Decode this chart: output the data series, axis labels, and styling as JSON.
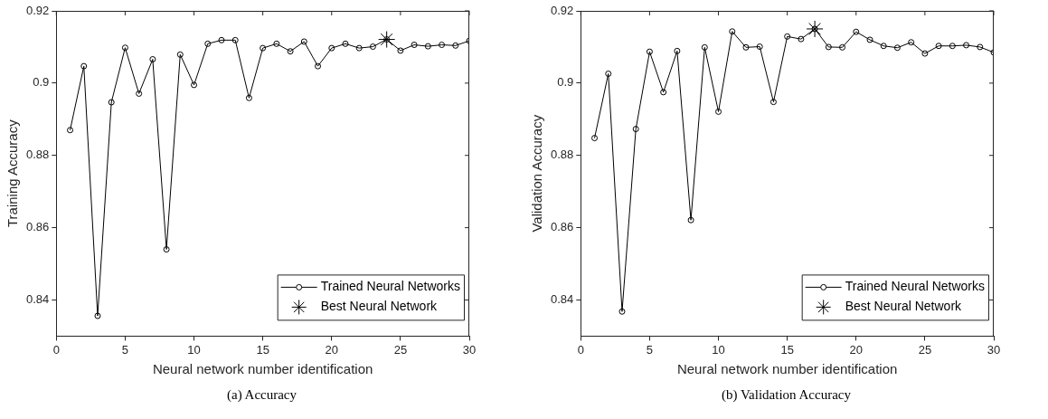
{
  "chart_data": [
    {
      "type": "line",
      "xlabel": "Neural network number identification",
      "ylabel": "Training Accuracy",
      "xlim": [
        0,
        30
      ],
      "xticks": [
        0,
        5,
        10,
        15,
        20,
        25,
        30
      ],
      "ylim": [
        0.83,
        0.92
      ],
      "yticks": [
        0.84,
        0.86,
        0.88,
        0.9,
        0.92
      ],
      "grid": false,
      "legend": "bottom right",
      "annotations": [
        "(a) Accuracy"
      ],
      "series": [
        {
          "name": "Trained Neural Networks",
          "color": "#000000",
          "marker": "circle",
          "x": [
            1,
            2,
            3,
            4,
            5,
            6,
            7,
            8,
            9,
            10,
            11,
            12,
            13,
            14,
            15,
            16,
            17,
            18,
            19,
            20,
            21,
            22,
            23,
            24,
            25,
            26,
            27,
            28,
            29,
            30
          ],
          "values": [
            0.887,
            0.9047,
            0.8356,
            0.8947,
            0.9098,
            0.8971,
            0.9066,
            0.854,
            0.9079,
            0.8995,
            0.9109,
            0.9119,
            0.9119,
            0.8959,
            0.9097,
            0.9109,
            0.9088,
            0.9115,
            0.9047,
            0.9097,
            0.9109,
            0.9097,
            0.9101,
            0.9121,
            0.909,
            0.9106,
            0.9102,
            0.9106,
            0.9104,
            0.9117
          ]
        },
        {
          "name": "Best Neural Network",
          "type": "scatter",
          "color": "#000000",
          "marker": "cross",
          "x": [
            24
          ],
          "values": [
            0.9121
          ]
        }
      ]
    },
    {
      "type": "line",
      "xlabel": "Neural network number identification",
      "ylabel": "Validation Accuracy",
      "xlim": [
        0,
        30
      ],
      "xticks": [
        0,
        5,
        10,
        15,
        20,
        25,
        30
      ],
      "ylim": [
        0.83,
        0.92
      ],
      "yticks": [
        0.84,
        0.86,
        0.88,
        0.9,
        0.92
      ],
      "grid": false,
      "legend": "bottom right",
      "annotations": [
        "(b) Validation Accuracy"
      ],
      "series": [
        {
          "name": "Trained Neural Networks",
          "color": "#000000",
          "marker": "circle",
          "x": [
            1,
            2,
            3,
            4,
            5,
            6,
            7,
            8,
            9,
            10,
            11,
            12,
            13,
            14,
            15,
            16,
            17,
            18,
            19,
            20,
            21,
            22,
            23,
            24,
            25,
            26,
            27,
            28,
            29,
            30
          ],
          "values": [
            0.8848,
            0.9026,
            0.8368,
            0.8873,
            0.9087,
            0.8975,
            0.9089,
            0.8621,
            0.9099,
            0.8921,
            0.9143,
            0.9099,
            0.9101,
            0.8948,
            0.9129,
            0.9122,
            0.915,
            0.91,
            0.9099,
            0.9142,
            0.912,
            0.9103,
            0.9098,
            0.9113,
            0.9082,
            0.9103,
            0.9103,
            0.9105,
            0.91,
            0.9085
          ]
        },
        {
          "name": "Best Neural Network",
          "type": "scatter",
          "color": "#000000",
          "marker": "cross",
          "x": [
            17
          ],
          "values": [
            0.915
          ]
        }
      ]
    }
  ]
}
